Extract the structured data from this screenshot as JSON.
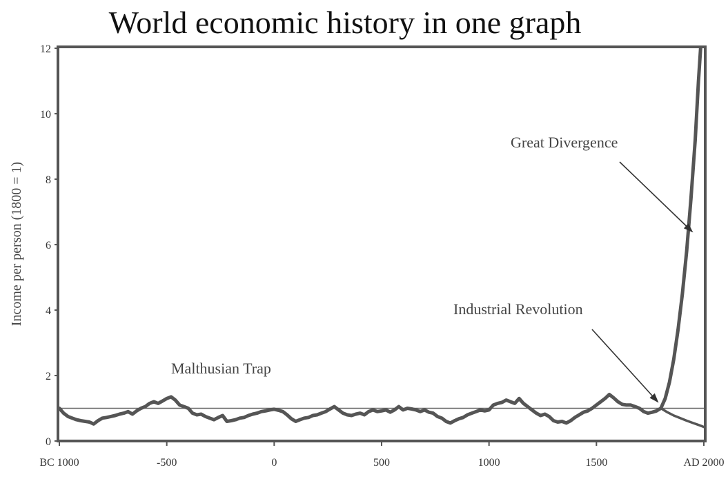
{
  "chart_data": {
    "type": "line",
    "title": "World economic history in one graph",
    "ylabel": "Income per person (1800 = 1)",
    "xlabel": "",
    "xlim": [
      -1000,
      2000
    ],
    "ylim": [
      0,
      12
    ],
    "x_ticks": [
      {
        "value": -1000,
        "label": "BC 1000"
      },
      {
        "value": -500,
        "label": "-500"
      },
      {
        "value": 0,
        "label": "0"
      },
      {
        "value": 500,
        "label": "500"
      },
      {
        "value": 1000,
        "label": "1000"
      },
      {
        "value": 1500,
        "label": "1500"
      },
      {
        "value": 2000,
        "label": "AD 2000"
      }
    ],
    "y_ticks": [
      {
        "value": 0,
        "label": "0"
      },
      {
        "value": 2,
        "label": "2"
      },
      {
        "value": 4,
        "label": "4"
      },
      {
        "value": 6,
        "label": "6"
      },
      {
        "value": 8,
        "label": "8"
      },
      {
        "value": 10,
        "label": "10"
      },
      {
        "value": 12,
        "label": "12"
      }
    ],
    "reference_line_y": 1,
    "series": [
      {
        "points": [
          [
            -1000,
            1.0
          ],
          [
            -980,
            0.85
          ],
          [
            -960,
            0.75
          ],
          [
            -940,
            0.7
          ],
          [
            -920,
            0.65
          ],
          [
            -900,
            0.62
          ],
          [
            -880,
            0.6
          ],
          [
            -860,
            0.58
          ],
          [
            -840,
            0.52
          ],
          [
            -820,
            0.62
          ],
          [
            -800,
            0.7
          ],
          [
            -780,
            0.72
          ],
          [
            -760,
            0.75
          ],
          [
            -740,
            0.78
          ],
          [
            -720,
            0.82
          ],
          [
            -700,
            0.85
          ],
          [
            -680,
            0.9
          ],
          [
            -660,
            0.82
          ],
          [
            -640,
            0.92
          ],
          [
            -620,
            1.0
          ],
          [
            -600,
            1.05
          ],
          [
            -580,
            1.15
          ],
          [
            -560,
            1.2
          ],
          [
            -540,
            1.15
          ],
          [
            -520,
            1.22
          ],
          [
            -500,
            1.3
          ],
          [
            -480,
            1.35
          ],
          [
            -460,
            1.25
          ],
          [
            -440,
            1.1
          ],
          [
            -420,
            1.05
          ],
          [
            -400,
            1.0
          ],
          [
            -380,
            0.85
          ],
          [
            -360,
            0.8
          ],
          [
            -340,
            0.82
          ],
          [
            -320,
            0.75
          ],
          [
            -300,
            0.7
          ],
          [
            -280,
            0.65
          ],
          [
            -260,
            0.72
          ],
          [
            -240,
            0.78
          ],
          [
            -220,
            0.6
          ],
          [
            -200,
            0.62
          ],
          [
            -180,
            0.65
          ],
          [
            -160,
            0.7
          ],
          [
            -140,
            0.72
          ],
          [
            -120,
            0.78
          ],
          [
            -100,
            0.82
          ],
          [
            -80,
            0.85
          ],
          [
            -60,
            0.9
          ],
          [
            -40,
            0.92
          ],
          [
            -20,
            0.95
          ],
          [
            0,
            0.97
          ],
          [
            20,
            0.94
          ],
          [
            40,
            0.9
          ],
          [
            60,
            0.8
          ],
          [
            80,
            0.68
          ],
          [
            100,
            0.6
          ],
          [
            120,
            0.65
          ],
          [
            140,
            0.7
          ],
          [
            160,
            0.72
          ],
          [
            180,
            0.78
          ],
          [
            200,
            0.8
          ],
          [
            220,
            0.85
          ],
          [
            240,
            0.9
          ],
          [
            260,
            0.98
          ],
          [
            280,
            1.05
          ],
          [
            300,
            0.95
          ],
          [
            320,
            0.85
          ],
          [
            340,
            0.8
          ],
          [
            360,
            0.78
          ],
          [
            380,
            0.82
          ],
          [
            400,
            0.85
          ],
          [
            420,
            0.8
          ],
          [
            440,
            0.9
          ],
          [
            460,
            0.95
          ],
          [
            480,
            0.9
          ],
          [
            500,
            0.92
          ],
          [
            520,
            0.95
          ],
          [
            540,
            0.88
          ],
          [
            560,
            0.95
          ],
          [
            580,
            1.05
          ],
          [
            600,
            0.95
          ],
          [
            620,
            1.0
          ],
          [
            640,
            0.98
          ],
          [
            660,
            0.95
          ],
          [
            680,
            0.9
          ],
          [
            700,
            0.95
          ],
          [
            720,
            0.88
          ],
          [
            740,
            0.85
          ],
          [
            760,
            0.75
          ],
          [
            780,
            0.7
          ],
          [
            800,
            0.6
          ],
          [
            820,
            0.55
          ],
          [
            840,
            0.62
          ],
          [
            860,
            0.68
          ],
          [
            880,
            0.72
          ],
          [
            900,
            0.8
          ],
          [
            920,
            0.85
          ],
          [
            940,
            0.9
          ],
          [
            960,
            0.95
          ],
          [
            980,
            0.92
          ],
          [
            1000,
            0.95
          ],
          [
            1020,
            1.1
          ],
          [
            1040,
            1.15
          ],
          [
            1060,
            1.18
          ],
          [
            1080,
            1.25
          ],
          [
            1100,
            1.2
          ],
          [
            1120,
            1.15
          ],
          [
            1140,
            1.3
          ],
          [
            1160,
            1.15
          ],
          [
            1180,
            1.05
          ],
          [
            1200,
            0.95
          ],
          [
            1220,
            0.85
          ],
          [
            1240,
            0.78
          ],
          [
            1260,
            0.82
          ],
          [
            1280,
            0.75
          ],
          [
            1300,
            0.62
          ],
          [
            1320,
            0.58
          ],
          [
            1340,
            0.6
          ],
          [
            1360,
            0.55
          ],
          [
            1380,
            0.62
          ],
          [
            1400,
            0.72
          ],
          [
            1420,
            0.8
          ],
          [
            1440,
            0.88
          ],
          [
            1460,
            0.92
          ],
          [
            1480,
            1.0
          ],
          [
            1500,
            1.1
          ],
          [
            1520,
            1.2
          ],
          [
            1540,
            1.3
          ],
          [
            1560,
            1.42
          ],
          [
            1580,
            1.32
          ],
          [
            1600,
            1.2
          ],
          [
            1620,
            1.12
          ],
          [
            1640,
            1.1
          ],
          [
            1660,
            1.1
          ],
          [
            1680,
            1.05
          ],
          [
            1700,
            1.0
          ],
          [
            1720,
            0.9
          ],
          [
            1740,
            0.85
          ],
          [
            1760,
            0.88
          ],
          [
            1780,
            0.92
          ],
          [
            1800,
            1.0
          ],
          [
            1820,
            1.3
          ],
          [
            1840,
            1.8
          ],
          [
            1860,
            2.5
          ],
          [
            1880,
            3.4
          ],
          [
            1900,
            4.5
          ],
          [
            1920,
            5.8
          ],
          [
            1940,
            7.4
          ],
          [
            1960,
            9.2
          ],
          [
            1975,
            11.0
          ],
          [
            1985,
            12.0
          ]
        ]
      },
      {
        "points": [
          [
            1800,
            1.0
          ],
          [
            1830,
            0.88
          ],
          [
            1860,
            0.78
          ],
          [
            1890,
            0.7
          ],
          [
            1920,
            0.62
          ],
          [
            1950,
            0.55
          ],
          [
            1980,
            0.48
          ],
          [
            2000,
            0.43
          ]
        ]
      }
    ],
    "annotations": [
      {
        "text": "Great Divergence",
        "target": [
          1945,
          6.4
        ]
      },
      {
        "text": "Industrial Revolution",
        "target": [
          1785,
          1.2
        ]
      },
      {
        "text": "Malthusian Trap"
      }
    ],
    "grid": false,
    "legend": "none"
  }
}
